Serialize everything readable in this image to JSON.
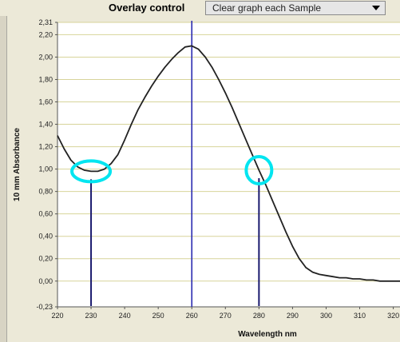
{
  "toolbar": {
    "overlay_label": "Overlay control",
    "overlay_mode_value": "Clear graph each Sample"
  },
  "colors": {
    "grid": "#d7d49a",
    "curve": "#222222",
    "marker_line": "#2a2ab0",
    "highlight_circle": "#00e5f0",
    "drop_line": "#1a1a6e"
  },
  "chart_data": {
    "type": "line",
    "title": "",
    "xlabel": "Wavelength nm",
    "ylabel": "10 mm Absorbance",
    "xlim": [
      220,
      322
    ],
    "ylim": [
      -0.23,
      2.31
    ],
    "x_ticks": [
      220,
      230,
      240,
      250,
      260,
      270,
      280,
      290,
      300,
      310,
      320
    ],
    "y_ticks": [
      "2,31",
      "2,20",
      "2,00",
      "1,80",
      "1,60",
      "1,40",
      "1,20",
      "1,00",
      "0,80",
      "0,60",
      "0,40",
      "0,20",
      "0,00",
      "-0,23"
    ],
    "grid": true,
    "series": [
      {
        "x": [
          220,
          222,
          224,
          226,
          228,
          230,
          232,
          234,
          236,
          238,
          240,
          242,
          244,
          246,
          248,
          250,
          252,
          254,
          256,
          258,
          260,
          262,
          264,
          266,
          268,
          270,
          272,
          274,
          276,
          278,
          280,
          282,
          284,
          286,
          288,
          290,
          292,
          294,
          296,
          298,
          300,
          302,
          304,
          306,
          308,
          310,
          312,
          314,
          316,
          318,
          320,
          322
        ],
        "y": [
          1.3,
          1.18,
          1.08,
          1.02,
          0.99,
          0.98,
          0.98,
          1.0,
          1.05,
          1.13,
          1.26,
          1.4,
          1.53,
          1.64,
          1.74,
          1.83,
          1.91,
          1.98,
          2.04,
          2.09,
          2.1,
          2.07,
          2.0,
          1.91,
          1.8,
          1.68,
          1.55,
          1.41,
          1.27,
          1.13,
          0.99,
          0.86,
          0.72,
          0.58,
          0.44,
          0.31,
          0.2,
          0.12,
          0.08,
          0.06,
          0.05,
          0.04,
          0.03,
          0.03,
          0.02,
          0.02,
          0.01,
          0.01,
          0.0,
          0.0,
          0.0,
          0.0
        ]
      }
    ],
    "vertical_marker_x": 260,
    "annotations": [
      {
        "x": 230,
        "y": 0.98,
        "shape": "circle",
        "drop_line": true
      },
      {
        "x": 280,
        "y": 0.99,
        "shape": "circle",
        "drop_line": true
      }
    ]
  }
}
